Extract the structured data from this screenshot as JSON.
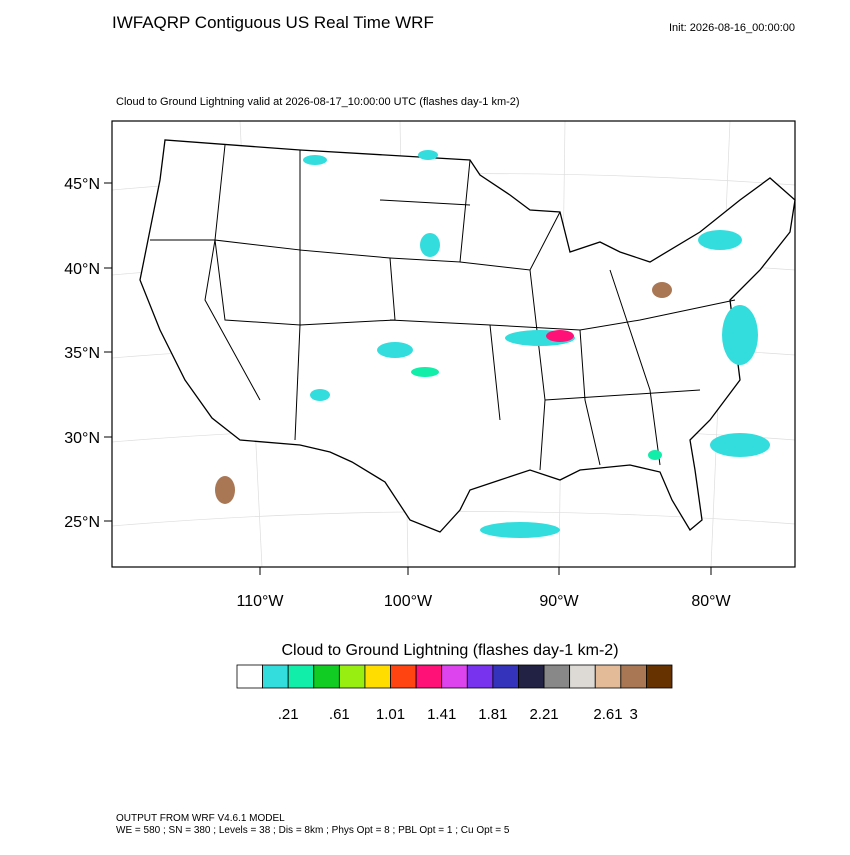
{
  "header": {
    "title": "IWFAQRP Contiguous US Real Time WRF",
    "init": "Init: 2026-08-16_00:00:00"
  },
  "map": {
    "subtitle": "Cloud to Ground Lightning valid at 2026-08-17_10:00:00 UTC   (flashes day-1 km-2)",
    "lat_labels": [
      "45°N",
      "40°N",
      "35°N",
      "30°N",
      "25°N"
    ],
    "lon_labels": [
      "110°W",
      "100°W",
      "90°W",
      "80°W"
    ]
  },
  "colorbar": {
    "title": "Cloud to Ground Lightning  (flashes day-1 km-2)",
    "colors": [
      "#ffffff",
      "#33dddd",
      "#11eeaa",
      "#11cc22",
      "#99ee11",
      "#ffdd00",
      "#ff4411",
      "#ff1177",
      "#dd44ee",
      "#7733ee",
      "#3333bb",
      "#222244",
      "#888888",
      "#dddad5",
      "#e3bb99",
      "#aa7755",
      "#663300"
    ],
    "labels": [
      ".21",
      ".61",
      "1.01",
      "1.41",
      "1.81",
      "2.21",
      "2.61",
      "3"
    ]
  },
  "footer": {
    "line1": "OUTPUT FROM WRF V4.6.1 MODEL",
    "line2": "WE = 580 ; SN = 380 ; Levels = 38 ; Dis = 8km ; Phys Opt = 8 ; PBL Opt = 1 ; Cu Opt = 5"
  }
}
